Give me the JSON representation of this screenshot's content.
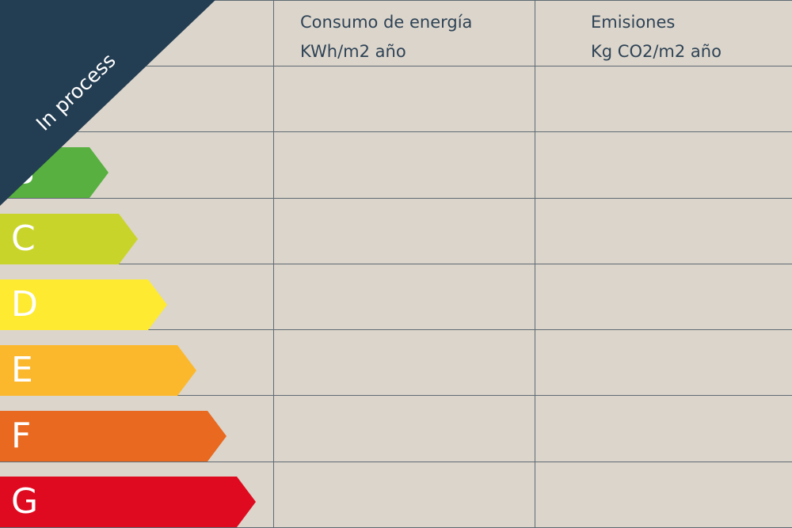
{
  "banner": {
    "label": "In process",
    "color": "#233d52"
  },
  "columns": [
    {
      "title": "Consumo de energía",
      "unit": "KWh/m2 año"
    },
    {
      "title": "Emisiones",
      "unit": "Kg CO2/m2 año"
    }
  ],
  "ratings": [
    {
      "letter": "B",
      "color": "#57b03f"
    },
    {
      "letter": "C",
      "color": "#c9d42a"
    },
    {
      "letter": "D",
      "color": "#fdea31"
    },
    {
      "letter": "E",
      "color": "#fbb82c"
    },
    {
      "letter": "F",
      "color": "#e8691f"
    },
    {
      "letter": "G",
      "color": "#df0a1f"
    }
  ]
}
